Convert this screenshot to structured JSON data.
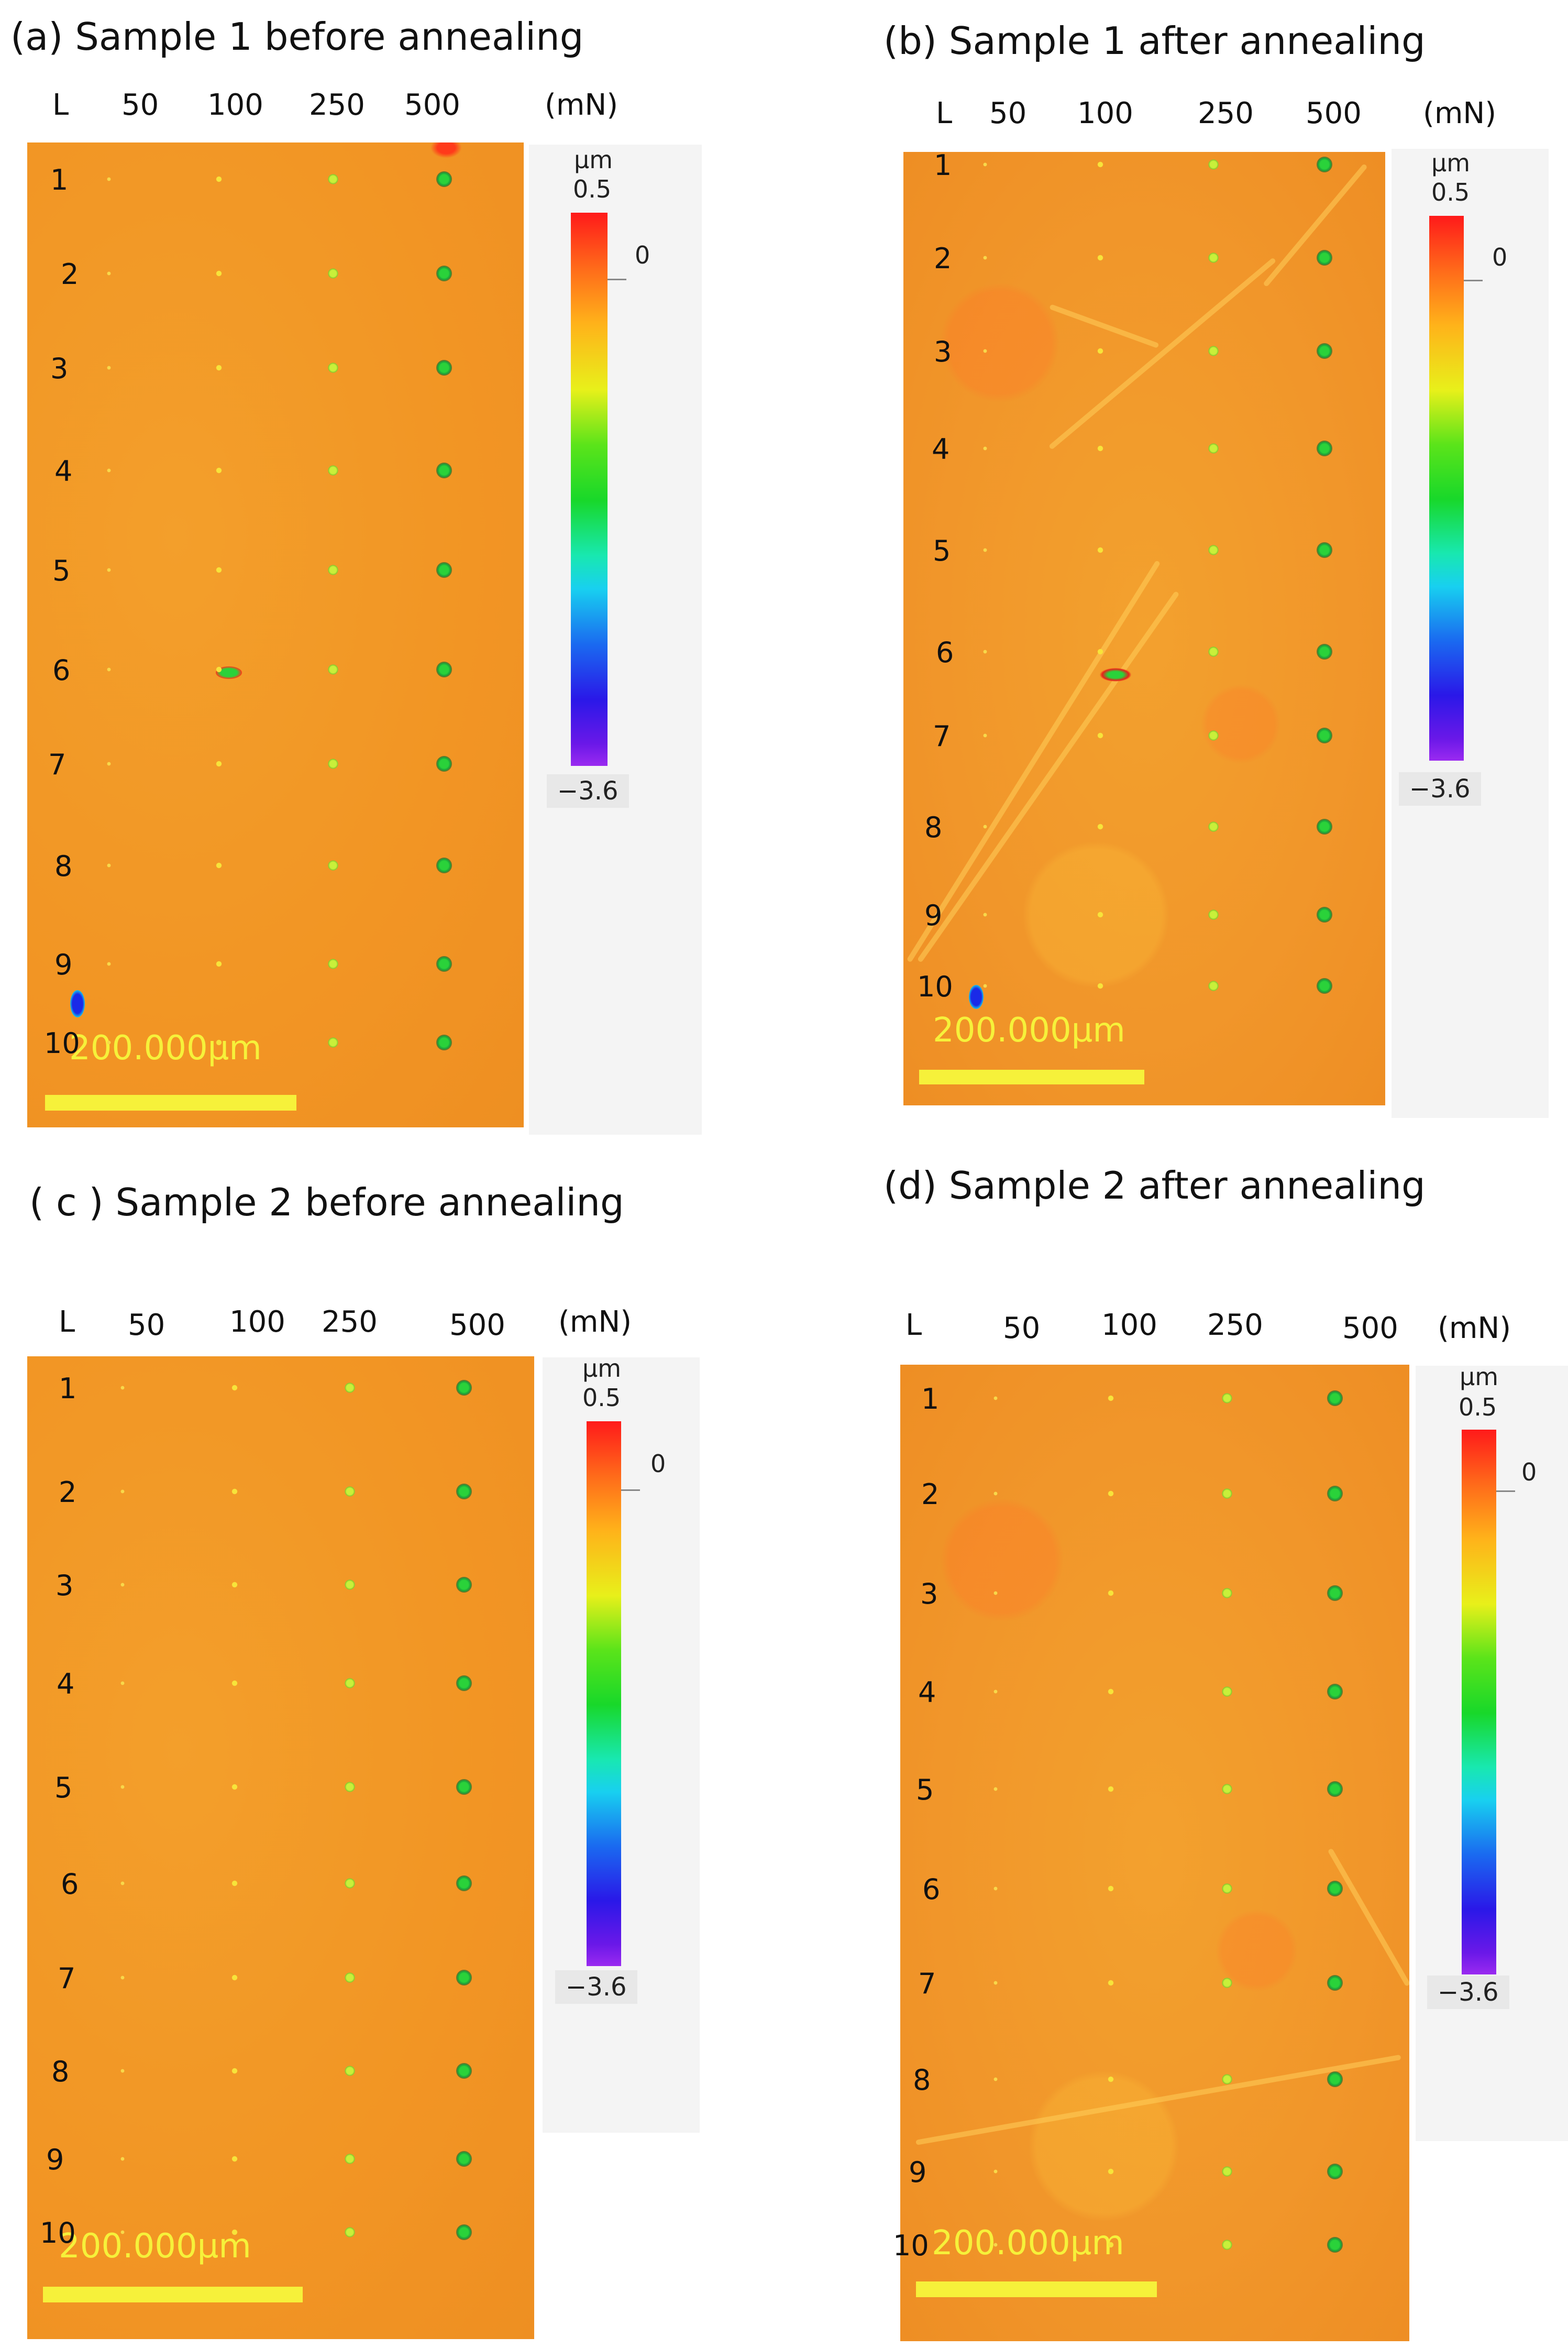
{
  "load_header": {
    "col_label": "L",
    "loads": [
      "50",
      "100",
      "250",
      "500"
    ],
    "unit": "(mN)"
  },
  "rows": [
    "1",
    "2",
    "3",
    "4",
    "5",
    "6",
    "7",
    "8",
    "9",
    "10"
  ],
  "colorbar": {
    "unit": "µm",
    "max": "0.5",
    "zero": "0",
    "min": "−3.6"
  },
  "scale_bar": "200.000µm",
  "panels": [
    {
      "title": "(a) Sample 1 before annealing"
    },
    {
      "title": "(b)   Sample 1 after annealing"
    },
    {
      "title": "( c ) Sample 2 before annealing"
    },
    {
      "title": "(d)   Sample 2 after annealing"
    }
  ]
}
